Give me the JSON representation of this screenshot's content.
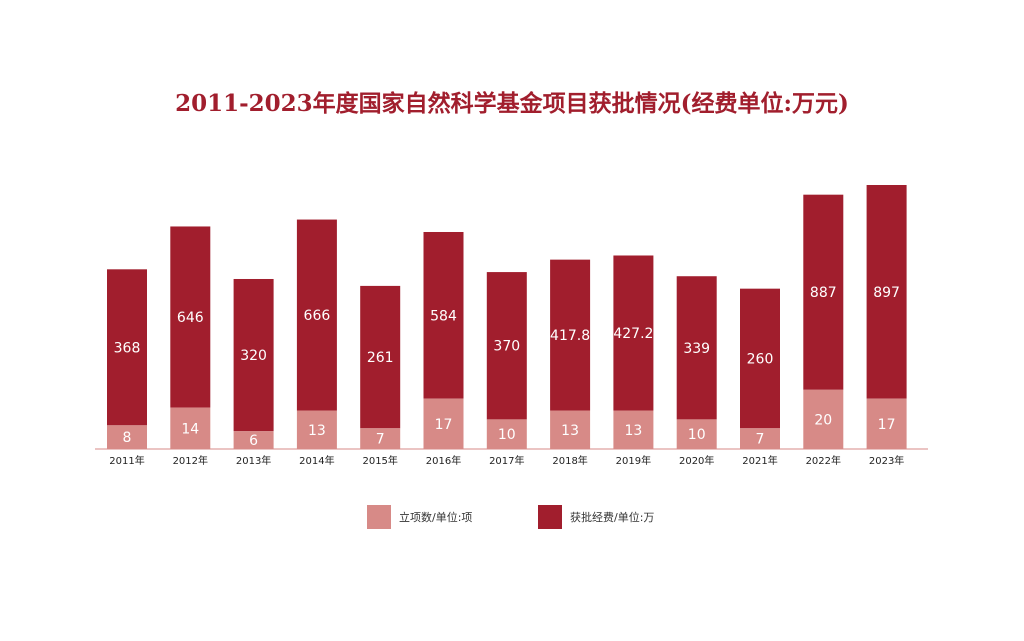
{
  "chart_data": {
    "type": "bar",
    "stacked": true,
    "title": "2011-2023年度国家自然科学基金项目获批情况(经费单位:万元)",
    "categories": [
      "2011年",
      "2012年",
      "2013年",
      "2014年",
      "2015年",
      "2016年",
      "2017年",
      "2018年",
      "2019年",
      "2020年",
      "2021年",
      "2022年",
      "2023年"
    ],
    "series": [
      {
        "name": "立项数/单位:项",
        "color": "#d78a87",
        "values": [
          8,
          14,
          6,
          13,
          7,
          17,
          10,
          13,
          13,
          10,
          7,
          20,
          17
        ],
        "labels": [
          "8",
          "14",
          "6",
          "13",
          "7",
          "17",
          "10",
          "13",
          "13",
          "10",
          "7",
          "20",
          "17"
        ]
      },
      {
        "name": "获批经费/单位:万",
        "color": "#a11e2d",
        "values": [
          368,
          646,
          320,
          666,
          261,
          584,
          370,
          417.8,
          427.2,
          339,
          260,
          887,
          897
        ],
        "labels": [
          "368",
          "646",
          "320",
          "666",
          "261",
          "584",
          "370",
          "417.8",
          "427.2",
          "339",
          "260",
          "887",
          "897"
        ]
      }
    ],
    "bar_tops": [
      650,
      805,
      615,
      830,
      590,
      785,
      640,
      685,
      700,
      625,
      580,
      920,
      955
    ],
    "legend_position": "bottom",
    "grid": false
  },
  "colors": {
    "title": "#a11e2d",
    "axis": "#d78a87"
  }
}
